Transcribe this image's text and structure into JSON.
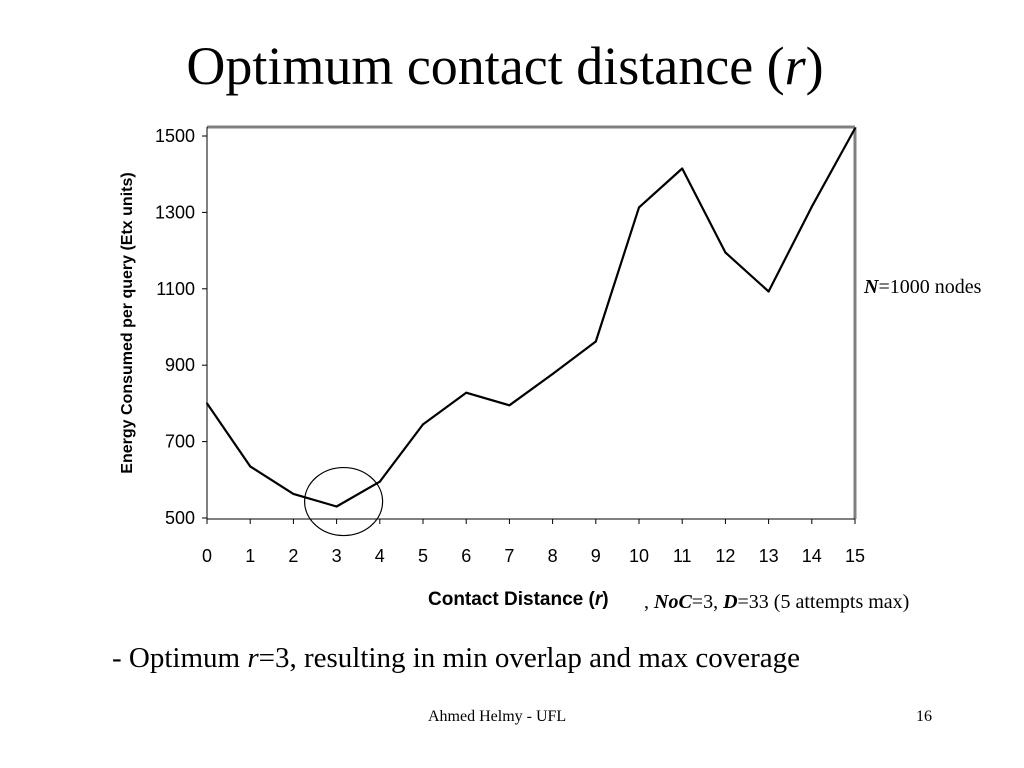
{
  "slide": {
    "title_prefix": "Optimum contact distance (",
    "title_var": "r",
    "title_suffix": ")",
    "annotation_nodes": {
      "label": "N",
      "rest": "=1000 nodes"
    },
    "annotation_params": {
      "lead": ", ",
      "noc_label": "NoC",
      "noc_rest": "=3, ",
      "d_label": "D",
      "d_rest": "=33 (5 attempts max)"
    },
    "bullet": {
      "prefix": "- Optimum ",
      "var": "r",
      "rest": "=3, resulting in min overlap and max coverage"
    },
    "footer_author": "Ahmed Helmy - UFL",
    "page_number": "16"
  },
  "chart_data": {
    "type": "line",
    "title": "",
    "xlabel": "Contact Distance (",
    "xlabel_var": "r",
    "xlabel_suffix": ")",
    "ylabel": "Energy Consumed per query (Etx units)",
    "x": [
      0,
      1,
      2,
      3,
      4,
      5,
      6,
      7,
      8,
      9,
      10,
      11,
      12,
      13,
      14,
      15
    ],
    "series": [
      {
        "values": [
          800,
          635,
          563,
          530,
          595,
          745,
          828,
          795,
          877,
          962,
          1313,
          1415,
          1195,
          1093,
          1315,
          1520
        ]
      }
    ],
    "xlim": [
      0,
      15
    ],
    "ylim": [
      500,
      1520
    ],
    "yticks": [
      500,
      700,
      900,
      1100,
      1300,
      1500
    ],
    "xticks": [
      0,
      1,
      2,
      3,
      4,
      5,
      6,
      7,
      8,
      9,
      10,
      11,
      12,
      13,
      14,
      15
    ],
    "grid": false,
    "legend": "none",
    "highlight": {
      "x": 3,
      "y": 530,
      "shape": "circle"
    },
    "line_color": "#000000",
    "frame_color": "#808080"
  }
}
